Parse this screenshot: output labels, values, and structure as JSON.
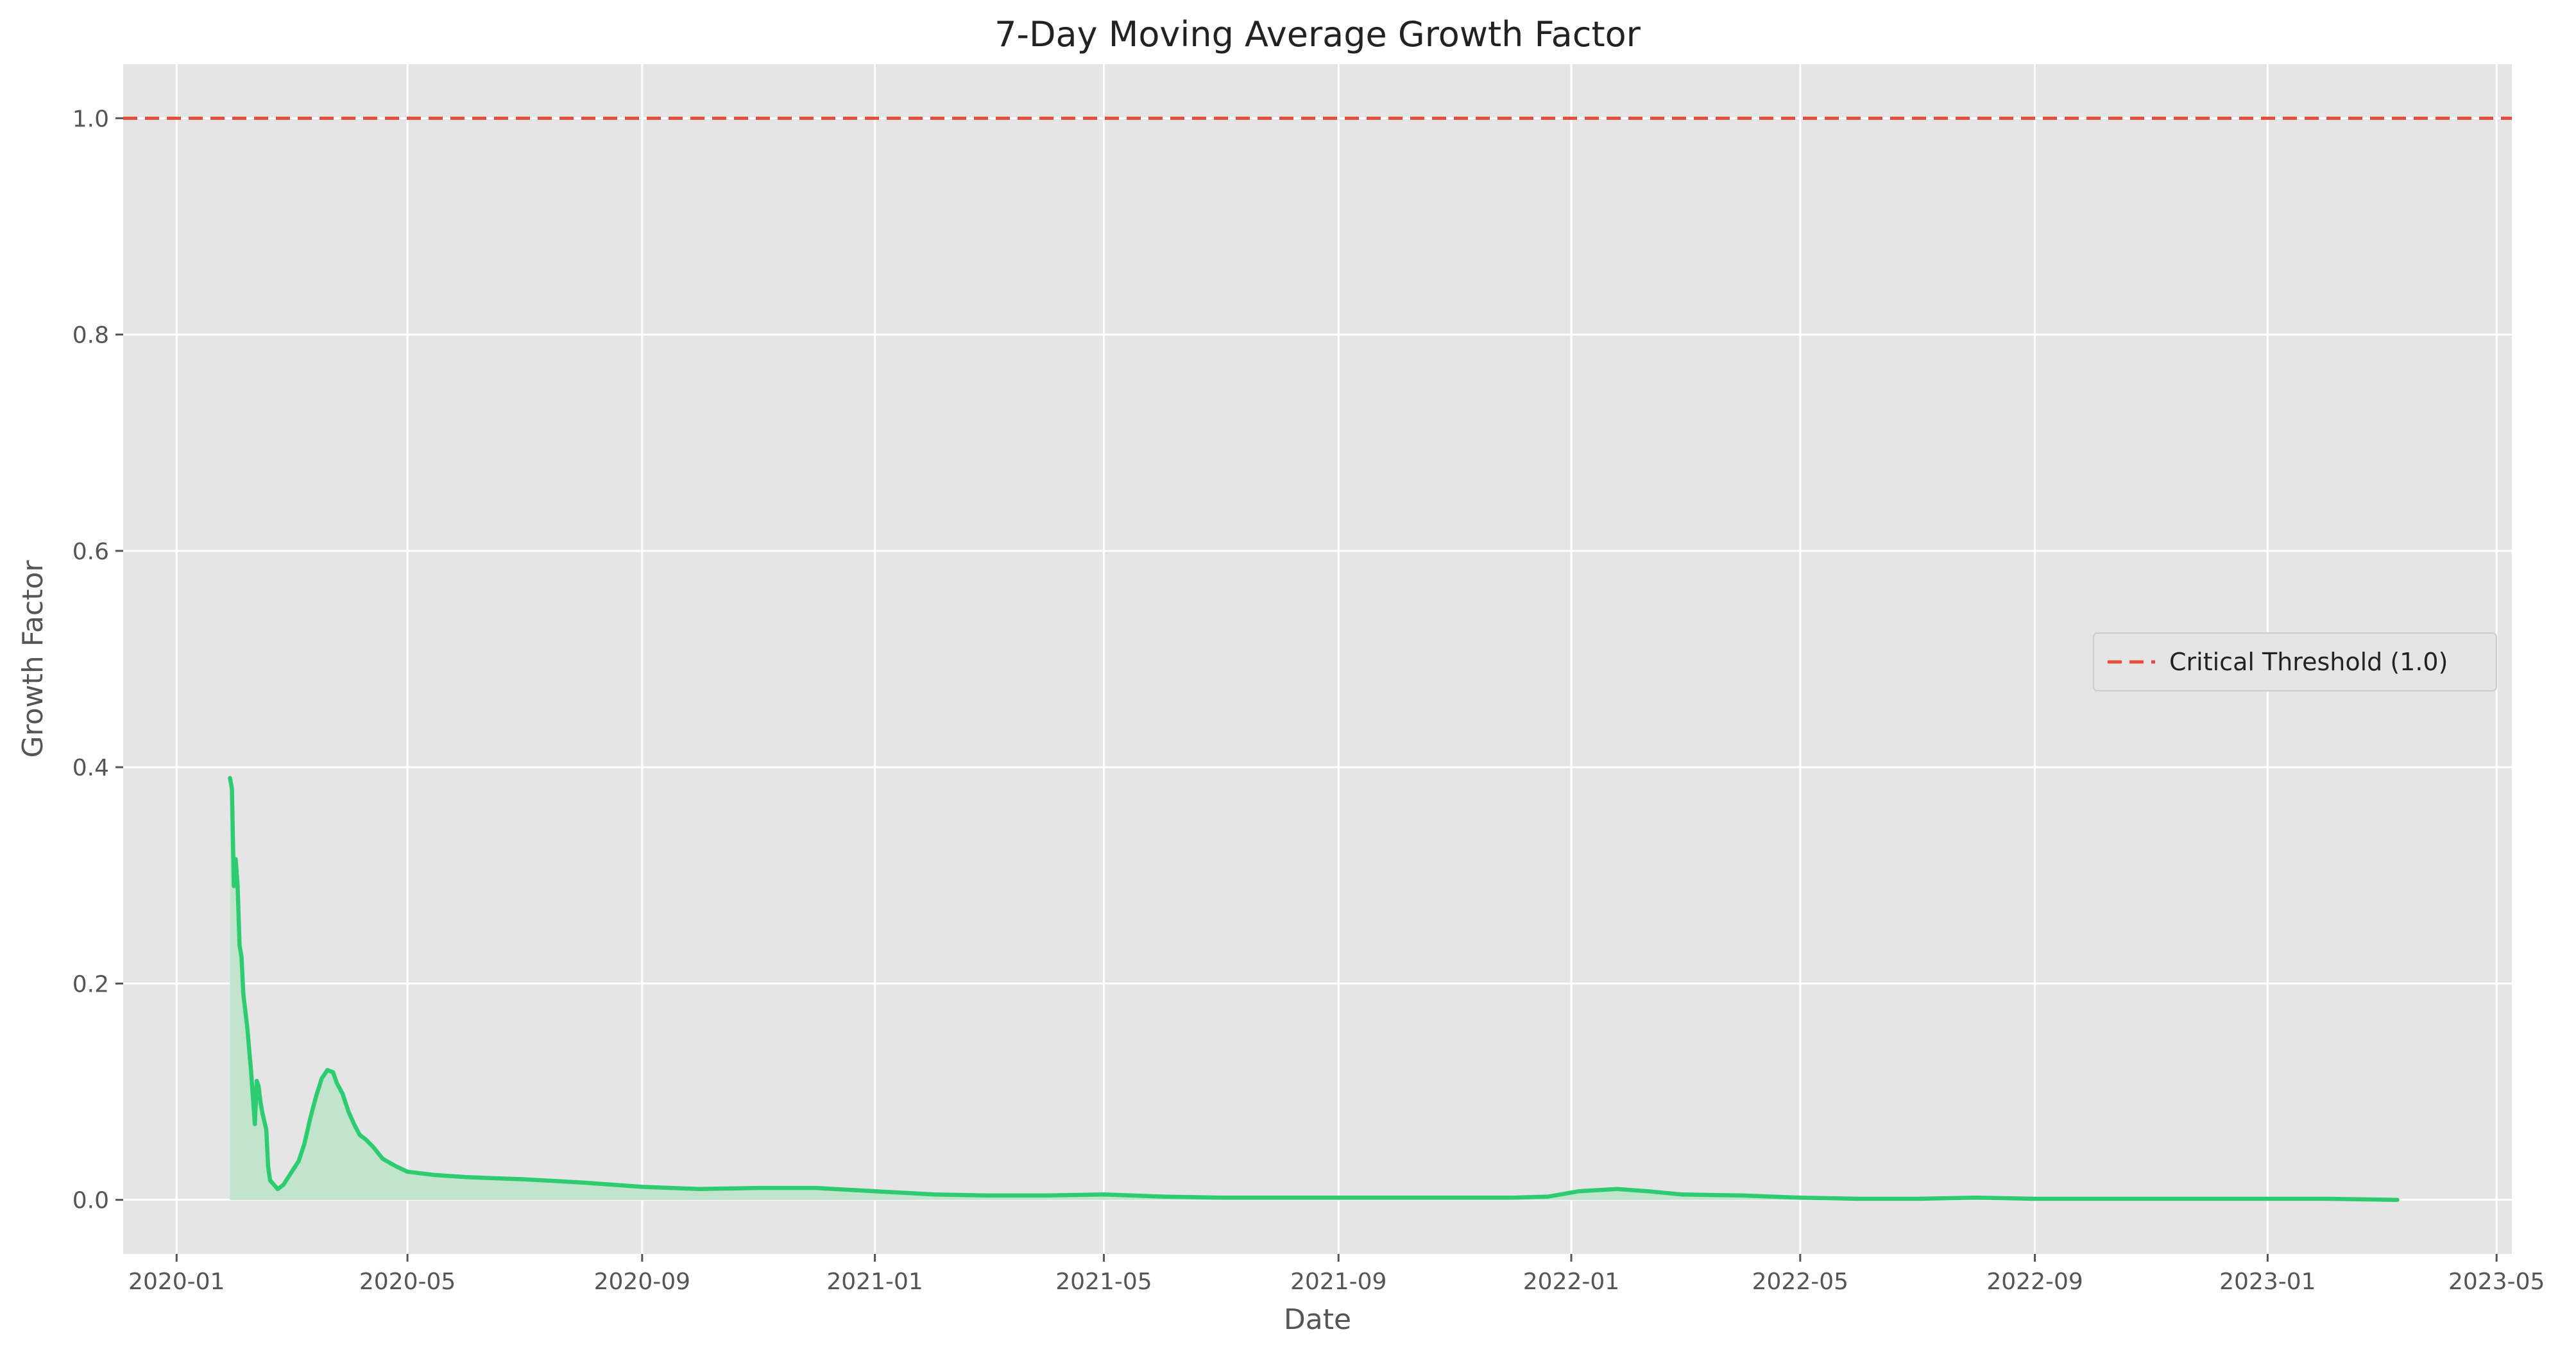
{
  "chart_data": {
    "type": "line",
    "title": "7-Day Moving Average Growth Factor",
    "xlabel": "Date",
    "ylabel": "Growth Factor",
    "xlim": [
      "2019-12-04",
      "2023-05-09"
    ],
    "ylim": [
      -0.05,
      1.05
    ],
    "x_ticks": [
      "2020-01",
      "2020-05",
      "2020-09",
      "2021-01",
      "2021-05",
      "2021-09",
      "2022-01",
      "2022-05",
      "2022-09",
      "2023-01",
      "2023-05"
    ],
    "y_ticks": [
      0.0,
      0.2,
      0.4,
      0.6,
      0.8,
      1.0
    ],
    "y_tick_labels": [
      "0.0",
      "0.2",
      "0.4",
      "0.6",
      "0.8",
      "1.0"
    ],
    "grid": true,
    "legend": {
      "placement": "center-right",
      "entries": [
        "Critical Threshold (1.0)"
      ]
    },
    "colors": {
      "series": "#2ecc71",
      "fill": "#c2e3cc",
      "threshold": "#e74c3c",
      "plot_bg": "#e5e5e5",
      "grid": "#ffffff"
    },
    "threshold": {
      "name": "Critical Threshold (1.0)",
      "value": 1.0,
      "style": "dashed"
    },
    "series": [
      {
        "filled": true,
        "points": [
          [
            "2020-01-29",
            0.39
          ],
          [
            "2020-01-30",
            0.38
          ],
          [
            "2020-01-31",
            0.29
          ],
          [
            "2020-02-01",
            0.315
          ],
          [
            "2020-02-02",
            0.29
          ],
          [
            "2020-02-03",
            0.235
          ],
          [
            "2020-02-04",
            0.225
          ],
          [
            "2020-02-05",
            0.19
          ],
          [
            "2020-02-07",
            0.16
          ],
          [
            "2020-02-09",
            0.12
          ],
          [
            "2020-02-10",
            0.095
          ],
          [
            "2020-02-11",
            0.07
          ],
          [
            "2020-02-12",
            0.11
          ],
          [
            "2020-02-13",
            0.105
          ],
          [
            "2020-02-14",
            0.09
          ],
          [
            "2020-02-15",
            0.08
          ],
          [
            "2020-02-17",
            0.065
          ],
          [
            "2020-02-18",
            0.03
          ],
          [
            "2020-02-19",
            0.018
          ],
          [
            "2020-02-21",
            0.014
          ],
          [
            "2020-02-23",
            0.01
          ],
          [
            "2020-02-26",
            0.014
          ],
          [
            "2020-03-01",
            0.025
          ],
          [
            "2020-03-05",
            0.036
          ],
          [
            "2020-03-08",
            0.052
          ],
          [
            "2020-03-11",
            0.075
          ],
          [
            "2020-03-14",
            0.095
          ],
          [
            "2020-03-17",
            0.112
          ],
          [
            "2020-03-20",
            0.12
          ],
          [
            "2020-03-23",
            0.118
          ],
          [
            "2020-03-25",
            0.108
          ],
          [
            "2020-03-28",
            0.098
          ],
          [
            "2020-03-31",
            0.082
          ],
          [
            "2020-04-03",
            0.07
          ],
          [
            "2020-04-06",
            0.06
          ],
          [
            "2020-04-09",
            0.056
          ],
          [
            "2020-04-13",
            0.049
          ],
          [
            "2020-04-18",
            0.038
          ],
          [
            "2020-04-25",
            0.031
          ],
          [
            "2020-05-01",
            0.026
          ],
          [
            "2020-05-15",
            0.023
          ],
          [
            "2020-06-01",
            0.021
          ],
          [
            "2020-07-01",
            0.019
          ],
          [
            "2020-08-01",
            0.016
          ],
          [
            "2020-09-01",
            0.012
          ],
          [
            "2020-10-01",
            0.01
          ],
          [
            "2020-11-01",
            0.011
          ],
          [
            "2020-12-01",
            0.011
          ],
          [
            "2021-01-01",
            0.008
          ],
          [
            "2021-02-01",
            0.005
          ],
          [
            "2021-03-01",
            0.004
          ],
          [
            "2021-04-01",
            0.004
          ],
          [
            "2021-05-01",
            0.005
          ],
          [
            "2021-06-01",
            0.003
          ],
          [
            "2021-07-01",
            0.002
          ],
          [
            "2021-08-01",
            0.002
          ],
          [
            "2021-09-01",
            0.002
          ],
          [
            "2021-10-01",
            0.002
          ],
          [
            "2021-11-01",
            0.002
          ],
          [
            "2021-12-01",
            0.002
          ],
          [
            "2021-12-20",
            0.003
          ],
          [
            "2022-01-05",
            0.008
          ],
          [
            "2022-01-25",
            0.01
          ],
          [
            "2022-02-10",
            0.008
          ],
          [
            "2022-02-28",
            0.005
          ],
          [
            "2022-04-01",
            0.004
          ],
          [
            "2022-05-01",
            0.002
          ],
          [
            "2022-06-01",
            0.001
          ],
          [
            "2022-07-01",
            0.001
          ],
          [
            "2022-08-01",
            0.002
          ],
          [
            "2022-09-01",
            0.001
          ],
          [
            "2022-10-01",
            0.001
          ],
          [
            "2022-11-01",
            0.001
          ],
          [
            "2022-12-01",
            0.001
          ],
          [
            "2023-01-01",
            0.001
          ],
          [
            "2023-02-01",
            0.001
          ],
          [
            "2023-03-10",
            0.0
          ]
        ]
      }
    ]
  }
}
